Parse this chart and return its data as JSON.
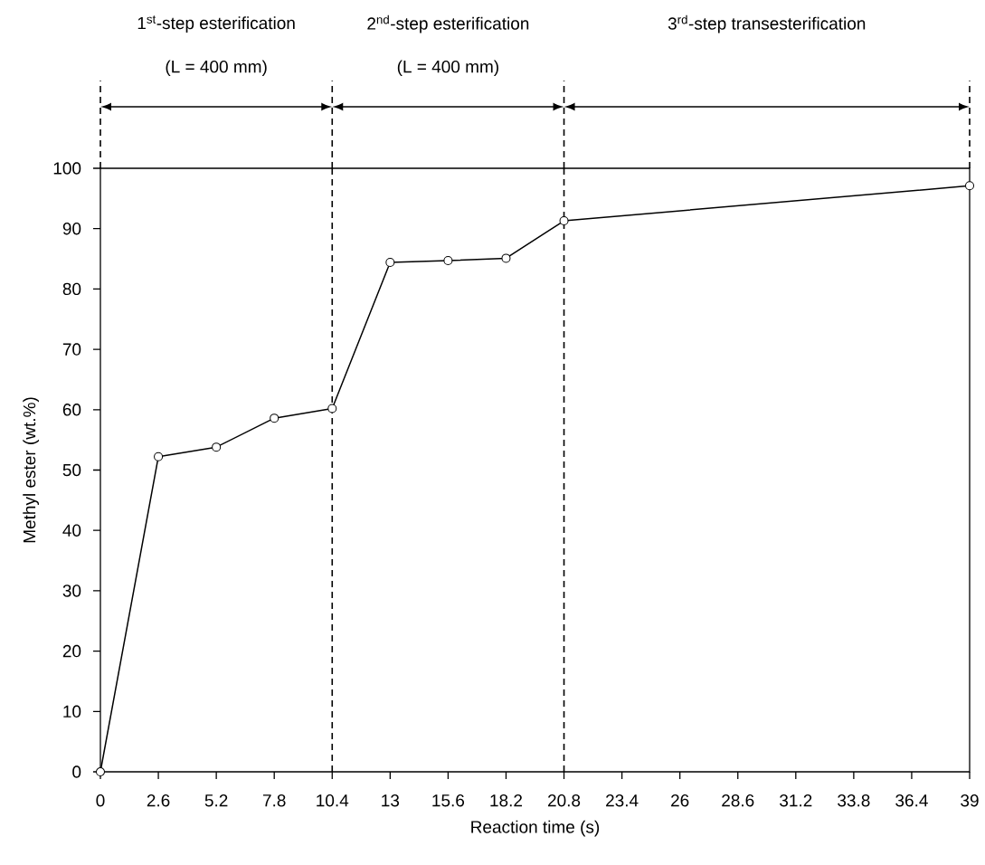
{
  "chart_data": {
    "type": "line",
    "xlabel": "Reaction time (s)",
    "ylabel": "Methyl ester (wt.%)",
    "series": [
      {
        "color": "#000000",
        "x": [
          0,
          2.6,
          5.2,
          7.8,
          10.4,
          13,
          15.6,
          18.2,
          20.8,
          39
        ],
        "values": [
          0,
          52.2,
          53.8,
          58.6,
          60.2,
          84.4,
          84.7,
          85.1,
          91.3,
          97.1
        ]
      }
    ],
    "marker": "circle",
    "line_style": "solid",
    "xlim": [
      0,
      39
    ],
    "ylim": [
      0,
      100
    ],
    "xticks": [
      0,
      2.6,
      5.2,
      7.8,
      10.4,
      13,
      15.6,
      18.2,
      20.8,
      23.4,
      26,
      28.6,
      31.2,
      33.8,
      36.4,
      39
    ],
    "yticks": [
      0,
      10,
      20,
      30,
      40,
      50,
      60,
      70,
      80,
      90,
      100
    ],
    "ref_lines": [
      {
        "axis": "x",
        "value": 10.4,
        "line_style": "dashed",
        "color": "#000000"
      },
      {
        "axis": "x",
        "value": 20.8,
        "line_style": "dashed",
        "color": "#000000"
      }
    ],
    "annotations": [
      "1$^{st}$-step esterification",
      "2$^{nd}$-step esterification",
      "3$^{rd}$-step transesterification",
      "(L = 400 mm)",
      "(L = 400 mm)"
    ],
    "grid": false
  }
}
